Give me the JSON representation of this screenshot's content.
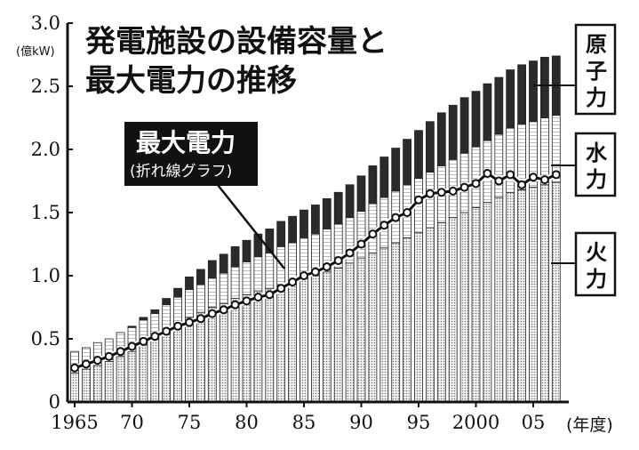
{
  "title_lines": [
    "発電施設の設備容量と",
    "最大電力の推移"
  ],
  "y_unit": "(億kW)",
  "x_unit": "(年度)",
  "callout_title": "最大電力",
  "callout_sub": "(折れ線グラフ)",
  "legend_labels": [
    [
      "原",
      "子",
      "力"
    ],
    [
      "水",
      "力"
    ],
    [
      "火",
      "力"
    ]
  ],
  "chart_data": {
    "type": "bar",
    "stacked": true,
    "title": "発電施設の設備容量と最大電力の推移",
    "ylabel": "(億kW)",
    "xlabel": "(年度)",
    "ylim": [
      0,
      3.0
    ],
    "yticks": [
      "0",
      "0.5",
      "1.0",
      "1.5",
      "2.0",
      "2.5",
      "3.0"
    ],
    "xticks": [
      "1965",
      "70",
      "75",
      "80",
      "85",
      "90",
      "95",
      "2000",
      "05"
    ],
    "categories": [
      1965,
      1966,
      1967,
      1968,
      1969,
      1970,
      1971,
      1972,
      1973,
      1974,
      1975,
      1976,
      1977,
      1978,
      1979,
      1980,
      1981,
      1982,
      1983,
      1984,
      1985,
      1986,
      1987,
      1988,
      1989,
      1990,
      1991,
      1992,
      1993,
      1994,
      1995,
      1996,
      1997,
      1998,
      1999,
      2000,
      2001,
      2002,
      2003,
      2004,
      2005,
      2006,
      2007
    ],
    "series": [
      {
        "name": "火力",
        "values": [
          0.23,
          0.26,
          0.29,
          0.32,
          0.36,
          0.4,
          0.45,
          0.5,
          0.56,
          0.62,
          0.67,
          0.71,
          0.75,
          0.78,
          0.82,
          0.85,
          0.88,
          0.9,
          0.93,
          0.95,
          0.98,
          1.0,
          1.03,
          1.06,
          1.1,
          1.14,
          1.18,
          1.22,
          1.26,
          1.3,
          1.34,
          1.38,
          1.42,
          1.46,
          1.5,
          1.54,
          1.58,
          1.62,
          1.66,
          1.68,
          1.7,
          1.72,
          1.74
        ]
      },
      {
        "name": "水力",
        "values": [
          0.17,
          0.17,
          0.18,
          0.18,
          0.19,
          0.19,
          0.2,
          0.2,
          0.21,
          0.21,
          0.22,
          0.22,
          0.23,
          0.24,
          0.25,
          0.26,
          0.27,
          0.28,
          0.3,
          0.31,
          0.32,
          0.33,
          0.34,
          0.35,
          0.36,
          0.37,
          0.39,
          0.4,
          0.41,
          0.42,
          0.43,
          0.44,
          0.45,
          0.46,
          0.47,
          0.48,
          0.49,
          0.5,
          0.51,
          0.52,
          0.52,
          0.53,
          0.53
        ]
      },
      {
        "name": "原子力",
        "values": [
          0,
          0,
          0,
          0,
          0,
          0.01,
          0.02,
          0.03,
          0.05,
          0.07,
          0.1,
          0.12,
          0.14,
          0.15,
          0.16,
          0.17,
          0.18,
          0.19,
          0.2,
          0.21,
          0.22,
          0.23,
          0.24,
          0.25,
          0.26,
          0.28,
          0.3,
          0.32,
          0.34,
          0.36,
          0.38,
          0.4,
          0.42,
          0.43,
          0.44,
          0.44,
          0.45,
          0.45,
          0.46,
          0.47,
          0.48,
          0.48,
          0.47
        ]
      }
    ],
    "line": {
      "name": "最大電力",
      "categories": [
        1965,
        1966,
        1967,
        1968,
        1969,
        1970,
        1971,
        1972,
        1973,
        1974,
        1975,
        1976,
        1977,
        1978,
        1979,
        1980,
        1981,
        1982,
        1983,
        1984,
        1985,
        1986,
        1987,
        1988,
        1989,
        1990,
        1991,
        1992,
        1993,
        1994,
        1995,
        1996,
        1997,
        1998,
        1999,
        2000,
        2001,
        2002,
        2003,
        2004,
        2005,
        2006,
        2007
      ],
      "values": [
        0.27,
        0.3,
        0.33,
        0.36,
        0.4,
        0.44,
        0.48,
        0.52,
        0.56,
        0.6,
        0.63,
        0.66,
        0.7,
        0.73,
        0.77,
        0.8,
        0.83,
        0.85,
        0.9,
        0.95,
        1.0,
        1.03,
        1.07,
        1.12,
        1.18,
        1.25,
        1.33,
        1.4,
        1.46,
        1.5,
        1.6,
        1.65,
        1.66,
        1.67,
        1.7,
        1.73,
        1.81,
        1.75,
        1.8,
        1.72,
        1.78,
        1.76,
        1.8
      ]
    },
    "grid": false
  }
}
